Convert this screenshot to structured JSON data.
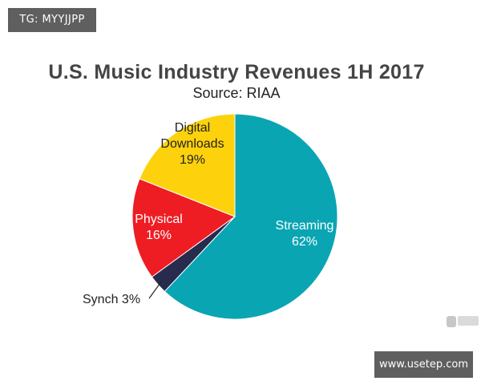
{
  "watermarks": {
    "top_left": "TG: MYYJJPP",
    "bottom_right": "www.usetep.com",
    "corner_logo": "成锋"
  },
  "chart_data": {
    "type": "pie",
    "title": "U.S. Music Industry Revenues 1H 2017",
    "subtitle": "Source: RIAA",
    "slices": [
      {
        "name": "Streaming",
        "label_lines": [
          "Streaming",
          "62%"
        ],
        "value": 62,
        "color": "#0aa5b3"
      },
      {
        "name": "Synch",
        "label_lines": [
          "Synch 3%"
        ],
        "value": 3,
        "color": "#272b4d"
      },
      {
        "name": "Physical",
        "label_lines": [
          "Physical",
          "16%"
        ],
        "value": 16,
        "color": "#ee1d23"
      },
      {
        "name": "Digital Downloads",
        "label_lines": [
          "Digital",
          "Downloads",
          "19%"
        ],
        "value": 19,
        "color": "#fdd20c"
      }
    ],
    "start": "12 o'clock",
    "direction": "clockwise"
  }
}
